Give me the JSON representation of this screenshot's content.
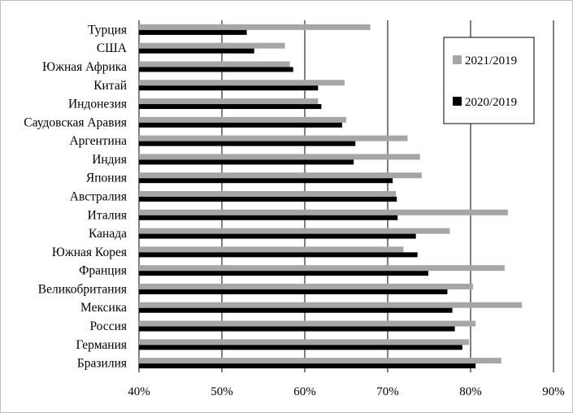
{
  "chart_data": {
    "type": "bar",
    "orientation": "horizontal",
    "categories": [
      "Турция",
      "США",
      "Южная Африка",
      "Китай",
      "Индонезия",
      "Саудовская Аравия",
      "Аргентина",
      "Индия",
      "Япония",
      "Австралия",
      "Италия",
      "Канада",
      "Южная Корея",
      "Франция",
      "Великобритания",
      "Мексика",
      "Россия",
      "Германия",
      "Бразилия"
    ],
    "series": [
      {
        "name": "2021/2019",
        "color": "#a6a6a6",
        "values": [
          67.9,
          57.6,
          58.2,
          64.8,
          61.6,
          65.0,
          72.4,
          73.9,
          74.1,
          71.0,
          84.5,
          77.5,
          71.9,
          84.1,
          80.3,
          86.2,
          80.6,
          79.8,
          83.7
        ]
      },
      {
        "name": "2020/2019",
        "color": "#000000",
        "values": [
          53.0,
          53.9,
          58.6,
          61.6,
          62.0,
          64.5,
          66.1,
          65.9,
          70.6,
          71.1,
          71.2,
          73.4,
          73.6,
          74.9,
          77.2,
          77.8,
          78.1,
          79.0,
          80.6
        ]
      }
    ],
    "xaxis": {
      "min": 40,
      "max": 90,
      "ticks": [
        "40%",
        "50%",
        "60%",
        "70%",
        "80%",
        "90%"
      ]
    },
    "grid": "vertical",
    "legend_placement": "top-right",
    "title": "",
    "xlabel": "",
    "ylabel": ""
  }
}
